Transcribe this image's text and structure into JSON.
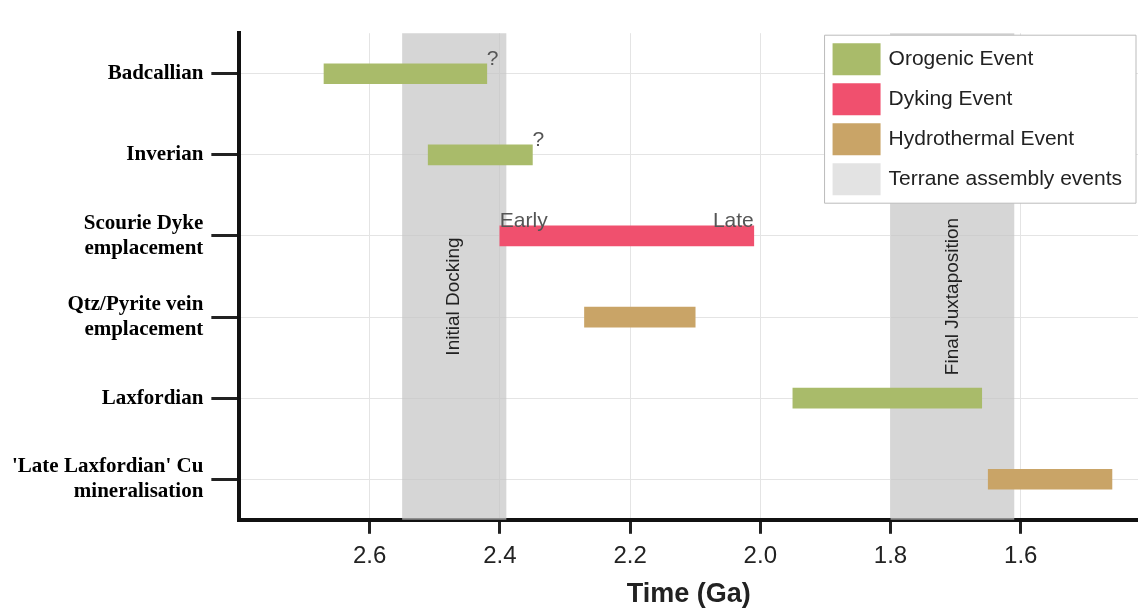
{
  "chart_data": {
    "type": "bar",
    "orientation": "horizontal",
    "xlabel": "Time (Ga)",
    "categories": [
      "Badcallian",
      "Inverian",
      "Scourie Dyke emplacement",
      "Qtz/Pyrite vein emplacement",
      "Laxfordian",
      "'Late Laxfordian' Cu mineralisation"
    ],
    "series": [
      {
        "name": "Orogenic Event",
        "color": "#a9bb6a",
        "base": [
          2.42,
          2.35,
          null,
          null,
          1.66,
          null
        ],
        "values": [
          0.25,
          0.16,
          null,
          null,
          0.29,
          null
        ]
      },
      {
        "name": "Dyking Event",
        "color": "#f0506e",
        "base": [
          null,
          null,
          2.01,
          null,
          null,
          null
        ],
        "values": [
          null,
          null,
          0.39,
          null,
          null,
          null
        ]
      },
      {
        "name": "Hydrothermal Event",
        "color": "#c9a467",
        "base": [
          null,
          null,
          null,
          2.1,
          null,
          1.46
        ],
        "values": [
          null,
          null,
          null,
          0.17,
          null,
          0.19
        ]
      },
      {
        "name": "Terrane assembly events",
        "color": "#e3e3e3",
        "values": [
          null,
          null,
          null,
          null,
          null,
          null
        ]
      }
    ],
    "xlim": [
      2.8,
      1.42
    ],
    "xticks": [
      2.6,
      2.4,
      2.2,
      {
        "value": 2.0,
        "label": "2.0"
      },
      1.8,
      1.6
    ],
    "bands": [
      {
        "axis": "x",
        "from": 2.55,
        "to": 2.39,
        "label": "Initial Docking",
        "color": "#c4c4c4"
      },
      {
        "axis": "x",
        "from": 1.8,
        "to": 1.61,
        "label": "Final Juxtaposition",
        "color": "#c4c4c4"
      }
    ],
    "annotations": [
      {
        "text": "?",
        "x": 2.42,
        "y": "Badcallian"
      },
      {
        "text": "?",
        "x": 2.35,
        "y": "Inverian"
      },
      {
        "text": "Early",
        "x": 2.4,
        "y": "Scourie Dyke emplacement"
      },
      {
        "text": "Late",
        "x": 2.01,
        "y": "Scourie Dyke emplacement"
      }
    ],
    "grid": true,
    "legend": "top right"
  }
}
